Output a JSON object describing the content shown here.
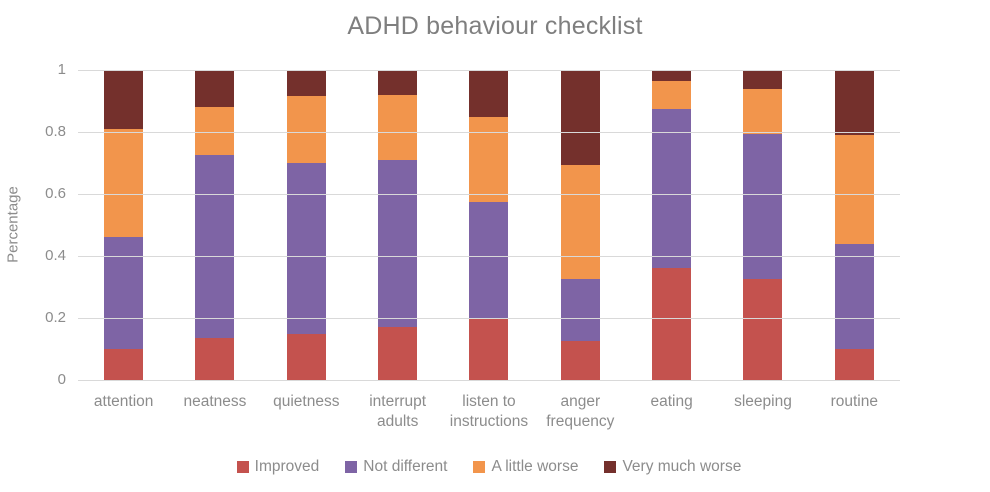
{
  "chart_data": {
    "type": "bar",
    "subtype": "stacked",
    "title": "ADHD behaviour checklist",
    "xlabel": "",
    "ylabel": "Percentage",
    "ylim": [
      0,
      1
    ],
    "grid": true,
    "legend_position": "bottom",
    "yticks": [
      {
        "label": "0",
        "value": 0.0
      },
      {
        "label": "0.2",
        "value": 0.2
      },
      {
        "label": "0.4",
        "value": 0.4
      },
      {
        "label": "0.6",
        "value": 0.6
      },
      {
        "label": "0.8",
        "value": 0.8
      },
      {
        "label": "1",
        "value": 1.0
      }
    ],
    "categories": [
      "attention",
      "neatness",
      "quietness",
      "interrupt adults",
      "listen to instructions",
      "anger frequency",
      "eating",
      "sleeping",
      "routine"
    ],
    "series": [
      {
        "name": "Improved",
        "color": "#c4524e",
        "values": [
          0.1,
          0.135,
          0.15,
          0.17,
          0.2,
          0.125,
          0.36,
          0.325,
          0.1
        ]
      },
      {
        "name": "Not different",
        "color": "#7e64a5",
        "values": [
          0.36,
          0.59,
          0.55,
          0.54,
          0.375,
          0.2,
          0.515,
          0.47,
          0.34
        ]
      },
      {
        "name": "A little worse",
        "color": "#f2954c",
        "values": [
          0.35,
          0.155,
          0.215,
          0.21,
          0.275,
          0.37,
          0.09,
          0.145,
          0.35
        ]
      },
      {
        "name": "Very much worse",
        "color": "#74302c",
        "values": [
          0.19,
          0.12,
          0.085,
          0.08,
          0.15,
          0.305,
          0.035,
          0.06,
          0.21
        ]
      }
    ],
    "style": {
      "gridline_color": "#d9d9d9",
      "text_color": "#8c8c8c",
      "title_color": "#7f7f7f"
    }
  }
}
